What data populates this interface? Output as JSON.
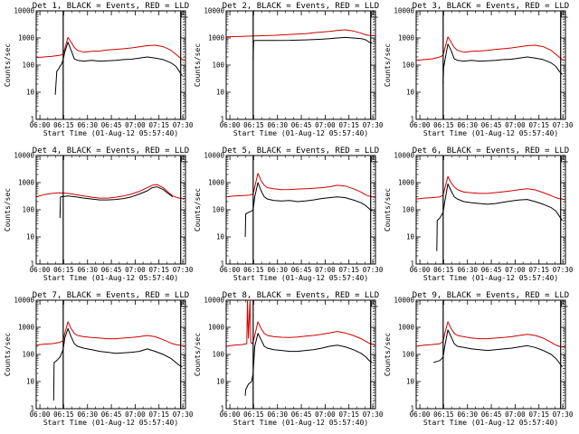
{
  "figure": {
    "title_suffix": "BLACK = Events, RED = LLD",
    "xlabel": "Start Time (01-Aug-12 05:57:40)",
    "ylabel": "Counts/sec",
    "x_tick_labels": [
      "06:00",
      "06:15",
      "06:30",
      "06:45",
      "07:00",
      "07:15",
      "07:30"
    ],
    "y_tick_labels": [
      "1",
      "10",
      "100",
      "1000",
      "10000"
    ]
  },
  "chart_data": [
    {
      "type": "line",
      "title": "Det 1",
      "scale": "log",
      "xlim": [
        0,
        94
      ],
      "ylim": [
        1,
        10000
      ],
      "vlines": [
        17,
        91
      ],
      "series": [
        {
          "name": "Events",
          "color": "#000000",
          "x": [
            12,
            13,
            14,
            15,
            16,
            17,
            18,
            20,
            22,
            24,
            26,
            30,
            35,
            40,
            45,
            50,
            55,
            60,
            65,
            70,
            75,
            80,
            85,
            88,
            90,
            92
          ],
          "y": [
            8,
            60,
            70,
            90,
            110,
            160,
            300,
            700,
            350,
            170,
            150,
            140,
            150,
            140,
            145,
            150,
            160,
            165,
            180,
            200,
            180,
            160,
            120,
            90,
            60,
            40
          ]
        },
        {
          "name": "LLD",
          "color": "#d00000",
          "x": [
            0,
            5,
            10,
            15,
            17,
            18,
            20,
            22,
            24,
            26,
            30,
            35,
            40,
            45,
            50,
            55,
            60,
            65,
            70,
            75,
            80,
            85,
            88,
            90,
            92,
            94
          ],
          "y": [
            190,
            200,
            210,
            230,
            250,
            400,
            1050,
            700,
            450,
            350,
            300,
            320,
            330,
            360,
            380,
            400,
            430,
            470,
            520,
            540,
            480,
            350,
            250,
            200,
            160,
            150
          ]
        }
      ]
    },
    {
      "type": "line",
      "title": "Det 2",
      "scale": "log",
      "xlim": [
        0,
        94
      ],
      "ylim": [
        1,
        10000
      ],
      "vlines": [
        17,
        91
      ],
      "series": [
        {
          "name": "Events",
          "color": "#000000",
          "x": [
            17,
            17.3,
            20,
            30,
            40,
            50,
            55,
            60,
            65,
            70,
            75,
            80,
            85,
            88,
            90,
            92
          ],
          "y": [
            150,
            800,
            810,
            810,
            820,
            850,
            880,
            900,
            950,
            1000,
            1050,
            1000,
            950,
            850,
            700,
            650
          ]
        },
        {
          "name": "LLD",
          "color": "#d00000",
          "x": [
            0,
            10,
            20,
            30,
            40,
            50,
            55,
            60,
            65,
            70,
            75,
            80,
            85,
            88,
            90,
            94
          ],
          "y": [
            1100,
            1150,
            1200,
            1250,
            1350,
            1450,
            1550,
            1650,
            1750,
            1900,
            2000,
            1800,
            1500,
            1300,
            1250,
            1200
          ]
        }
      ]
    },
    {
      "type": "line",
      "title": "Det 3",
      "scale": "log",
      "xlim": [
        0,
        94
      ],
      "ylim": [
        1,
        10000
      ],
      "vlines": [
        17,
        91
      ],
      "series": [
        {
          "name": "Events",
          "color": "#000000",
          "x": [
            17,
            17.3,
            18,
            20,
            22,
            24,
            26,
            30,
            35,
            40,
            45,
            50,
            55,
            60,
            65,
            70,
            75,
            80,
            85,
            88,
            90,
            92
          ],
          "y": [
            20,
            80,
            140,
            600,
            350,
            170,
            150,
            140,
            150,
            140,
            145,
            150,
            160,
            165,
            180,
            200,
            180,
            160,
            120,
            90,
            60,
            45
          ]
        },
        {
          "name": "LLD",
          "color": "#d00000",
          "x": [
            0,
            5,
            10,
            15,
            17,
            18,
            20,
            22,
            24,
            26,
            30,
            35,
            40,
            45,
            50,
            55,
            60,
            65,
            70,
            75,
            80,
            85,
            88,
            90,
            92,
            94
          ],
          "y": [
            150,
            160,
            170,
            200,
            230,
            400,
            1100,
            700,
            450,
            350,
            300,
            320,
            330,
            350,
            380,
            400,
            430,
            470,
            520,
            540,
            480,
            350,
            250,
            200,
            160,
            150
          ]
        }
      ]
    },
    {
      "type": "line",
      "title": "Det 4",
      "scale": "log",
      "xlim": [
        0,
        94
      ],
      "ylim": [
        1,
        10000
      ],
      "vlines": [
        17,
        91
      ],
      "series": [
        {
          "name": "Events",
          "color": "#000000",
          "x": [
            15,
            15.3,
            20,
            25,
            30,
            35,
            40,
            45,
            50,
            55,
            60,
            65,
            70,
            73,
            76,
            80,
            83,
            86
          ],
          "y": [
            50,
            300,
            320,
            300,
            270,
            250,
            230,
            230,
            240,
            260,
            300,
            380,
            500,
            650,
            700,
            560,
            400,
            300
          ]
        },
        {
          "name": "LLD",
          "color": "#d00000",
          "x": [
            0,
            5,
            10,
            15,
            20,
            25,
            30,
            35,
            40,
            45,
            50,
            55,
            60,
            65,
            70,
            73,
            76,
            80,
            83,
            86,
            90,
            94
          ],
          "y": [
            300,
            360,
            400,
            420,
            400,
            360,
            320,
            290,
            270,
            270,
            290,
            320,
            380,
            480,
            650,
            800,
            850,
            650,
            450,
            320,
            270,
            260
          ]
        }
      ]
    },
    {
      "type": "line",
      "title": "Det 5",
      "scale": "log",
      "xlim": [
        0,
        94
      ],
      "ylim": [
        1,
        10000
      ],
      "vlines": [
        17,
        91
      ],
      "series": [
        {
          "name": "Events",
          "color": "#000000",
          "x": [
            12,
            12.3,
            14,
            16,
            17,
            18,
            20,
            22,
            24,
            26,
            30,
            35,
            40,
            45,
            50,
            55,
            60,
            65,
            70,
            75,
            80,
            85,
            88,
            90,
            92
          ],
          "y": [
            10,
            70,
            80,
            90,
            100,
            300,
            1000,
            500,
            300,
            250,
            220,
            210,
            220,
            200,
            210,
            230,
            260,
            280,
            300,
            280,
            230,
            180,
            140,
            110,
            90
          ]
        },
        {
          "name": "LLD",
          "color": "#d00000",
          "x": [
            0,
            5,
            10,
            15,
            17,
            18,
            20,
            22,
            24,
            26,
            30,
            35,
            40,
            45,
            50,
            55,
            60,
            65,
            70,
            75,
            80,
            85,
            88,
            90,
            92,
            94
          ],
          "y": [
            300,
            320,
            330,
            350,
            380,
            700,
            2200,
            1200,
            800,
            650,
            600,
            550,
            560,
            580,
            600,
            620,
            650,
            700,
            800,
            750,
            600,
            450,
            350,
            320,
            300,
            280
          ]
        }
      ]
    },
    {
      "type": "line",
      "title": "Det 6",
      "scale": "log",
      "xlim": [
        0,
        94
      ],
      "ylim": [
        1,
        10000
      ],
      "vlines": [
        17,
        91
      ],
      "series": [
        {
          "name": "Events",
          "color": "#000000",
          "x": [
            13,
            13.3,
            15,
            17,
            18,
            20,
            22,
            24,
            26,
            30,
            35,
            40,
            45,
            50,
            55,
            60,
            65,
            70,
            75,
            80,
            85,
            88,
            90,
            92
          ],
          "y": [
            3,
            40,
            50,
            80,
            200,
            900,
            500,
            300,
            250,
            200,
            180,
            170,
            160,
            170,
            190,
            210,
            230,
            240,
            200,
            160,
            120,
            90,
            60,
            40
          ]
        },
        {
          "name": "LLD",
          "color": "#d00000",
          "x": [
            0,
            5,
            10,
            15,
            17,
            18,
            20,
            22,
            24,
            26,
            30,
            35,
            40,
            45,
            50,
            55,
            60,
            65,
            70,
            75,
            80,
            85,
            88,
            90,
            92,
            94
          ],
          "y": [
            250,
            270,
            280,
            300,
            350,
            600,
            1700,
            1000,
            700,
            550,
            450,
            420,
            400,
            400,
            430,
            460,
            500,
            550,
            600,
            540,
            430,
            330,
            280,
            260,
            250,
            240
          ]
        }
      ]
    },
    {
      "type": "line",
      "title": "Det 7",
      "scale": "log",
      "xlim": [
        0,
        94
      ],
      "ylim": [
        1,
        10000
      ],
      "vlines": [
        17,
        91
      ],
      "series": [
        {
          "name": "Events",
          "color": "#000000",
          "x": [
            11,
            11.3,
            13,
            15,
            17,
            18,
            20,
            22,
            24,
            26,
            30,
            35,
            40,
            45,
            50,
            55,
            60,
            65,
            70,
            75,
            80,
            85,
            88,
            90,
            92
          ],
          "y": [
            2,
            50,
            60,
            80,
            150,
            400,
            900,
            450,
            250,
            200,
            170,
            150,
            130,
            120,
            110,
            115,
            120,
            130,
            160,
            130,
            100,
            70,
            50,
            40,
            35
          ]
        },
        {
          "name": "LLD",
          "color": "#d00000",
          "x": [
            0,
            5,
            10,
            15,
            17,
            18,
            20,
            22,
            24,
            26,
            30,
            35,
            40,
            45,
            50,
            55,
            60,
            65,
            70,
            75,
            80,
            85,
            88,
            90,
            92,
            94
          ],
          "y": [
            220,
            240,
            250,
            280,
            320,
            600,
            1600,
            900,
            600,
            500,
            450,
            420,
            400,
            380,
            380,
            400,
            420,
            450,
            500,
            450,
            350,
            260,
            230,
            220,
            210,
            200
          ]
        }
      ]
    },
    {
      "type": "line",
      "title": "Det 8",
      "scale": "log",
      "xlim": [
        0,
        94
      ],
      "ylim": [
        1,
        10000
      ],
      "vlines": [
        17,
        91
      ],
      "series": [
        {
          "name": "Events",
          "color": "#000000",
          "x": [
            12,
            12.3,
            14,
            16,
            17,
            18,
            20,
            22,
            24,
            26,
            30,
            35,
            40,
            45,
            50,
            55,
            60,
            65,
            70,
            75,
            80,
            85,
            88,
            90,
            92
          ],
          "y": [
            3,
            5,
            8,
            10,
            20,
            200,
            600,
            350,
            200,
            170,
            150,
            140,
            130,
            130,
            140,
            150,
            170,
            200,
            220,
            190,
            150,
            110,
            80,
            60,
            50
          ]
        },
        {
          "name": "LLD",
          "color": "#d00000",
          "x": [
            0,
            5,
            10,
            13,
            13.4,
            14,
            15,
            15.5,
            16,
            17,
            18,
            20,
            22,
            24,
            26,
            30,
            35,
            40,
            45,
            50,
            55,
            60,
            65,
            70,
            75,
            80,
            85,
            88,
            90,
            92,
            94
          ],
          "y": [
            200,
            220,
            230,
            250,
            10000,
            400,
            10000,
            300,
            250,
            280,
            500,
            1600,
            900,
            600,
            500,
            450,
            430,
            420,
            440,
            470,
            500,
            550,
            620,
            700,
            620,
            500,
            380,
            300,
            260,
            240,
            220
          ]
        }
      ]
    },
    {
      "type": "line",
      "title": "Det 9",
      "scale": "log",
      "xlim": [
        0,
        94
      ],
      "ylim": [
        1,
        10000
      ],
      "vlines": [
        17,
        91
      ],
      "series": [
        {
          "name": "Events",
          "color": "#000000",
          "x": [
            11,
            13,
            15,
            17,
            18,
            20,
            22,
            24,
            26,
            30,
            35,
            40,
            45,
            50,
            55,
            60,
            65,
            70,
            75,
            80,
            85,
            88,
            90,
            92
          ],
          "y": [
            50,
            55,
            60,
            80,
            200,
            800,
            450,
            250,
            200,
            180,
            160,
            150,
            140,
            150,
            160,
            170,
            190,
            210,
            180,
            140,
            100,
            70,
            50,
            35
          ]
        },
        {
          "name": "LLD",
          "color": "#d00000",
          "x": [
            0,
            5,
            10,
            15,
            17,
            18,
            20,
            22,
            24,
            26,
            30,
            35,
            40,
            45,
            50,
            55,
            60,
            65,
            70,
            75,
            80,
            85,
            88,
            90,
            92,
            94
          ],
          "y": [
            200,
            220,
            230,
            250,
            300,
            600,
            1600,
            900,
            600,
            500,
            450,
            400,
            380,
            380,
            400,
            420,
            450,
            500,
            550,
            500,
            400,
            280,
            220,
            200,
            190,
            180
          ]
        }
      ]
    }
  ]
}
